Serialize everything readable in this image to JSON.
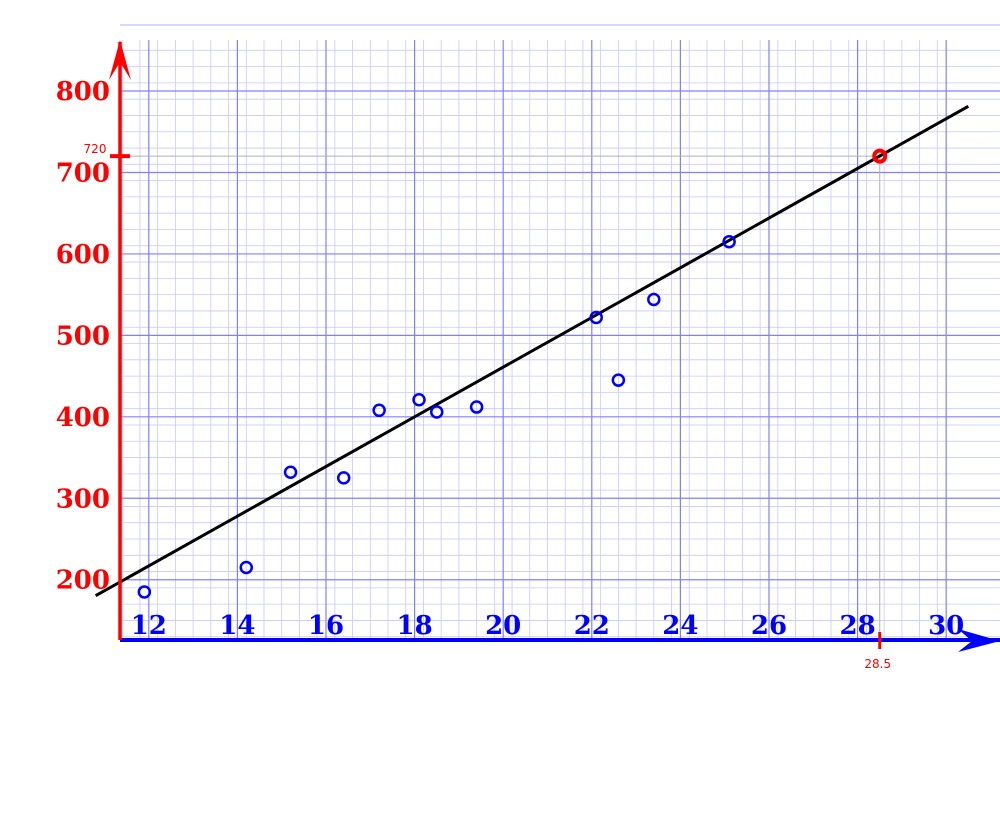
{
  "chart_data": {
    "type": "scatter",
    "x_ticks": [
      "12",
      "14",
      "16",
      "18",
      "20",
      "22",
      "24",
      "26",
      "28",
      "30"
    ],
    "y_ticks": [
      "200",
      "300",
      "400",
      "500",
      "600",
      "700",
      "800"
    ],
    "xlim": [
      11.35,
      30
    ],
    "ylim": [
      126,
      860
    ],
    "grid": true,
    "points": [
      {
        "x": 11.9,
        "y": 185
      },
      {
        "x": 14.2,
        "y": 215
      },
      {
        "x": 15.2,
        "y": 332
      },
      {
        "x": 16.4,
        "y": 325
      },
      {
        "x": 17.2,
        "y": 408
      },
      {
        "x": 18.1,
        "y": 421
      },
      {
        "x": 18.5,
        "y": 406
      },
      {
        "x": 19.4,
        "y": 412
      },
      {
        "x": 22.1,
        "y": 522
      },
      {
        "x": 22.6,
        "y": 445
      },
      {
        "x": 23.4,
        "y": 544
      },
      {
        "x": 25.1,
        "y": 615
      }
    ],
    "trend_line": {
      "slope": 30.5,
      "intercept": -149
    },
    "highlight": {
      "x": 28.5,
      "y": 720,
      "x_label": "28.5",
      "y_label": "720"
    },
    "colors": {
      "x_axis": "#0000ff",
      "y_axis": "#ff0000",
      "points": "#0000ff",
      "trend_line": "#000000",
      "highlight": "#ff0000",
      "grid_major": "#8080ff",
      "grid_minor": "#c8c8ff"
    }
  }
}
